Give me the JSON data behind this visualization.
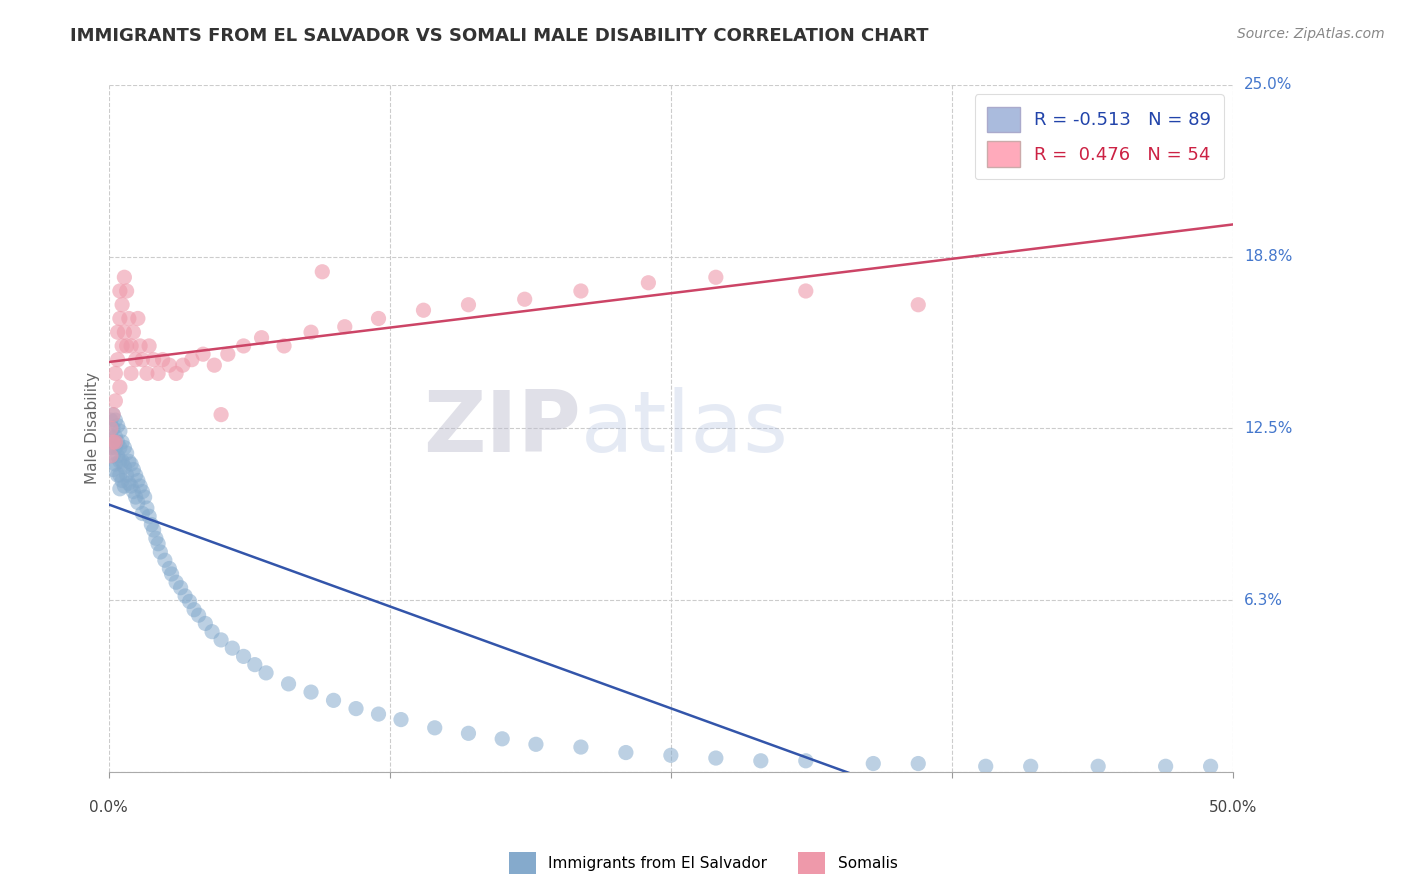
{
  "title": "IMMIGRANTS FROM EL SALVADOR VS SOMALI MALE DISABILITY CORRELATION CHART",
  "source_text": "Source: ZipAtlas.com",
  "ylabel": "Male Disability",
  "xlim": [
    0.0,
    0.5
  ],
  "ylim": [
    0.0,
    0.25
  ],
  "yticks": [
    0.0,
    0.0625,
    0.125,
    0.1875,
    0.25
  ],
  "ytick_labels": [
    "",
    "6.3%",
    "12.5%",
    "18.8%",
    "25.0%"
  ],
  "xticks": [
    0.0,
    0.125,
    0.25,
    0.375,
    0.5
  ],
  "blue_label": "Immigrants from El Salvador",
  "pink_label": "Somalis",
  "blue_R": -0.513,
  "blue_N": 89,
  "pink_R": 0.476,
  "pink_N": 54,
  "blue_color": "#85AACC",
  "pink_color": "#EE99AA",
  "blue_line_color": "#3355AA",
  "pink_line_color": "#CC4466",
  "watermark_zip": "ZIP",
  "watermark_atlas": "atlas",
  "background_color": "#FFFFFF",
  "grid_color": "#CCCCCC",
  "blue_x": [
    0.001,
    0.001,
    0.001,
    0.002,
    0.002,
    0.002,
    0.002,
    0.002,
    0.003,
    0.003,
    0.003,
    0.003,
    0.004,
    0.004,
    0.004,
    0.004,
    0.005,
    0.005,
    0.005,
    0.005,
    0.005,
    0.006,
    0.006,
    0.006,
    0.007,
    0.007,
    0.007,
    0.008,
    0.008,
    0.009,
    0.009,
    0.01,
    0.01,
    0.011,
    0.011,
    0.012,
    0.012,
    0.013,
    0.013,
    0.014,
    0.015,
    0.015,
    0.016,
    0.017,
    0.018,
    0.019,
    0.02,
    0.021,
    0.022,
    0.023,
    0.025,
    0.027,
    0.028,
    0.03,
    0.032,
    0.034,
    0.036,
    0.038,
    0.04,
    0.043,
    0.046,
    0.05,
    0.055,
    0.06,
    0.065,
    0.07,
    0.08,
    0.09,
    0.1,
    0.11,
    0.12,
    0.13,
    0.145,
    0.16,
    0.175,
    0.19,
    0.21,
    0.23,
    0.25,
    0.27,
    0.29,
    0.31,
    0.34,
    0.36,
    0.39,
    0.41,
    0.44,
    0.47,
    0.49
  ],
  "blue_y": [
    0.128,
    0.122,
    0.118,
    0.13,
    0.125,
    0.12,
    0.115,
    0.11,
    0.128,
    0.122,
    0.118,
    0.112,
    0.126,
    0.12,
    0.115,
    0.108,
    0.124,
    0.118,
    0.113,
    0.108,
    0.103,
    0.12,
    0.113,
    0.106,
    0.118,
    0.111,
    0.104,
    0.116,
    0.108,
    0.113,
    0.105,
    0.112,
    0.104,
    0.11,
    0.102,
    0.108,
    0.1,
    0.106,
    0.098,
    0.104,
    0.102,
    0.094,
    0.1,
    0.096,
    0.093,
    0.09,
    0.088,
    0.085,
    0.083,
    0.08,
    0.077,
    0.074,
    0.072,
    0.069,
    0.067,
    0.064,
    0.062,
    0.059,
    0.057,
    0.054,
    0.051,
    0.048,
    0.045,
    0.042,
    0.039,
    0.036,
    0.032,
    0.029,
    0.026,
    0.023,
    0.021,
    0.019,
    0.016,
    0.014,
    0.012,
    0.01,
    0.009,
    0.007,
    0.006,
    0.005,
    0.004,
    0.004,
    0.003,
    0.003,
    0.002,
    0.002,
    0.002,
    0.002,
    0.002
  ],
  "pink_x": [
    0.001,
    0.001,
    0.002,
    0.002,
    0.003,
    0.003,
    0.003,
    0.004,
    0.004,
    0.005,
    0.005,
    0.005,
    0.006,
    0.006,
    0.007,
    0.007,
    0.008,
    0.008,
    0.009,
    0.01,
    0.01,
    0.011,
    0.012,
    0.013,
    0.014,
    0.015,
    0.017,
    0.018,
    0.02,
    0.022,
    0.024,
    0.027,
    0.03,
    0.033,
    0.037,
    0.042,
    0.047,
    0.053,
    0.06,
    0.068,
    0.078,
    0.09,
    0.105,
    0.12,
    0.14,
    0.16,
    0.185,
    0.21,
    0.24,
    0.27,
    0.31,
    0.36,
    0.05,
    0.095
  ],
  "pink_y": [
    0.125,
    0.115,
    0.13,
    0.12,
    0.145,
    0.135,
    0.12,
    0.16,
    0.15,
    0.175,
    0.165,
    0.14,
    0.17,
    0.155,
    0.18,
    0.16,
    0.175,
    0.155,
    0.165,
    0.155,
    0.145,
    0.16,
    0.15,
    0.165,
    0.155,
    0.15,
    0.145,
    0.155,
    0.15,
    0.145,
    0.15,
    0.148,
    0.145,
    0.148,
    0.15,
    0.152,
    0.148,
    0.152,
    0.155,
    0.158,
    0.155,
    0.16,
    0.162,
    0.165,
    0.168,
    0.17,
    0.172,
    0.175,
    0.178,
    0.18,
    0.175,
    0.17,
    0.13,
    0.182
  ]
}
